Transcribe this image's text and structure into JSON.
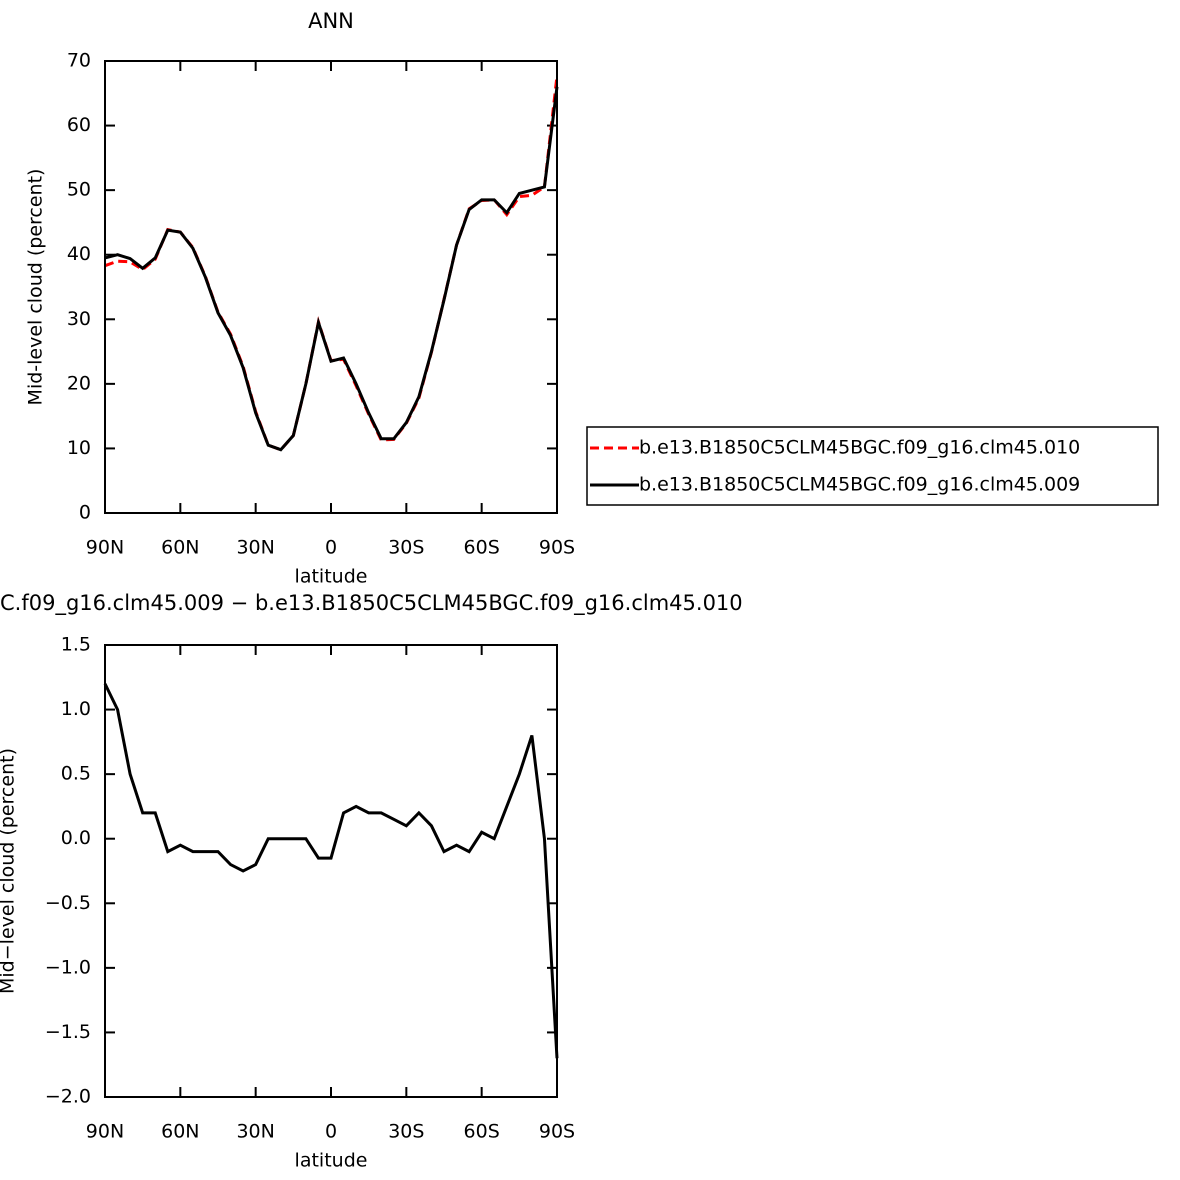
{
  "chart_data": [
    {
      "type": "line",
      "title": "ANN",
      "x_label": "latitude",
      "y_label": "Mid-level cloud (percent)",
      "x": [
        90,
        85,
        80,
        75,
        70,
        65,
        60,
        55,
        50,
        45,
        40,
        35,
        30,
        25,
        20,
        15,
        10,
        5,
        0,
        -5,
        -10,
        -15,
        -20,
        -25,
        -30,
        -35,
        -40,
        -45,
        -50,
        -55,
        -60,
        -65,
        -70,
        -75,
        -80,
        -85,
        -90
      ],
      "series": [
        {
          "name": "b.e13.B1850C5CLM45BGC.f09_g16.clm45.010",
          "color": "#ff0000",
          "dash": true,
          "values": [
            38.3,
            39.0,
            38.9,
            37.7,
            39.3,
            43.9,
            43.5,
            41.1,
            36.6,
            31.1,
            27.7,
            22.7,
            15.7,
            10.5,
            9.8,
            12.0,
            20.0,
            29.6,
            23.6,
            23.8,
            19.7,
            15.3,
            11.3,
            11.4,
            13.9,
            17.8,
            24.9,
            33.1,
            41.5,
            47.1,
            48.4,
            48.5,
            46.2,
            49.0,
            49.2,
            50.5,
            67.7
          ]
        },
        {
          "name": "b.e13.B1850C5CLM45BGC.f09_g16.clm45.009",
          "color": "#000000",
          "dash": false,
          "values": [
            39.5,
            40.0,
            39.4,
            37.9,
            39.5,
            43.8,
            43.5,
            41.0,
            36.5,
            31.0,
            27.5,
            22.5,
            15.5,
            10.5,
            9.8,
            12.0,
            20.0,
            29.5,
            23.5,
            24.0,
            20.0,
            15.5,
            11.5,
            11.5,
            14.0,
            18.0,
            25.0,
            33.0,
            41.5,
            47.0,
            48.5,
            48.5,
            46.5,
            49.5,
            50.0,
            50.5,
            66.0
          ]
        }
      ],
      "xlim": [
        90,
        -90
      ],
      "xticks": [
        {
          "value": 90,
          "label": "90N"
        },
        {
          "value": 60,
          "label": "60N"
        },
        {
          "value": 30,
          "label": "30N"
        },
        0,
        {
          "value": -30,
          "label": "30S"
        },
        {
          "value": -60,
          "label": "60S"
        },
        {
          "value": -90,
          "label": "90S"
        }
      ],
      "ylim": [
        0,
        70
      ],
      "yticks": [
        0,
        10,
        20,
        30,
        40,
        50,
        60,
        70
      ],
      "legend": "right"
    },
    {
      "type": "line",
      "title": "C.f09_g16.clm45.009 − b.e13.B1850C5CLM45BGC.f09_g16.clm45.010",
      "x_label": "latitude",
      "y_label": "Mid−level cloud (percent)",
      "x": [
        90,
        85,
        80,
        75,
        70,
        65,
        60,
        55,
        50,
        45,
        40,
        35,
        30,
        25,
        20,
        15,
        10,
        5,
        0,
        -5,
        -10,
        -15,
        -20,
        -25,
        -30,
        -35,
        -40,
        -45,
        -50,
        -55,
        -60,
        -65,
        -70,
        -75,
        -80,
        -85,
        -90
      ],
      "series": [
        {
          "color": "#000000",
          "values": [
            1.2,
            1.0,
            0.5,
            0.2,
            0.2,
            -0.1,
            -0.05,
            -0.1,
            -0.1,
            -0.1,
            -0.2,
            -0.25,
            -0.2,
            0.0,
            0.0,
            0.0,
            0.0,
            -0.15,
            -0.15,
            0.2,
            0.25,
            0.2,
            0.2,
            0.15,
            0.1,
            0.2,
            0.1,
            -0.1,
            -0.05,
            -0.1,
            0.05,
            0.0,
            0.25,
            0.5,
            0.8,
            0.0,
            -1.7
          ]
        }
      ],
      "xlim": [
        90,
        -90
      ],
      "xticks": [
        {
          "value": 90,
          "label": "90N"
        },
        {
          "value": 60,
          "label": "60N"
        },
        {
          "value": 30,
          "label": "30N"
        },
        0,
        {
          "value": -30,
          "label": "30S"
        },
        {
          "value": -60,
          "label": "60S"
        },
        {
          "value": -90,
          "label": "90S"
        }
      ],
      "ylim": [
        -2.0,
        1.5
      ],
      "yticks": [
        {
          "value": -2.0,
          "label": "−2.0"
        },
        {
          "value": -1.5,
          "label": "−1.5"
        },
        {
          "value": -1.0,
          "label": "−1.0"
        },
        {
          "value": -0.5,
          "label": "−0.5"
        },
        {
          "value": 0.0,
          "label": "0.0"
        },
        0.5,
        {
          "value": 1.0,
          "label": "1.0"
        },
        1.5
      ]
    }
  ]
}
